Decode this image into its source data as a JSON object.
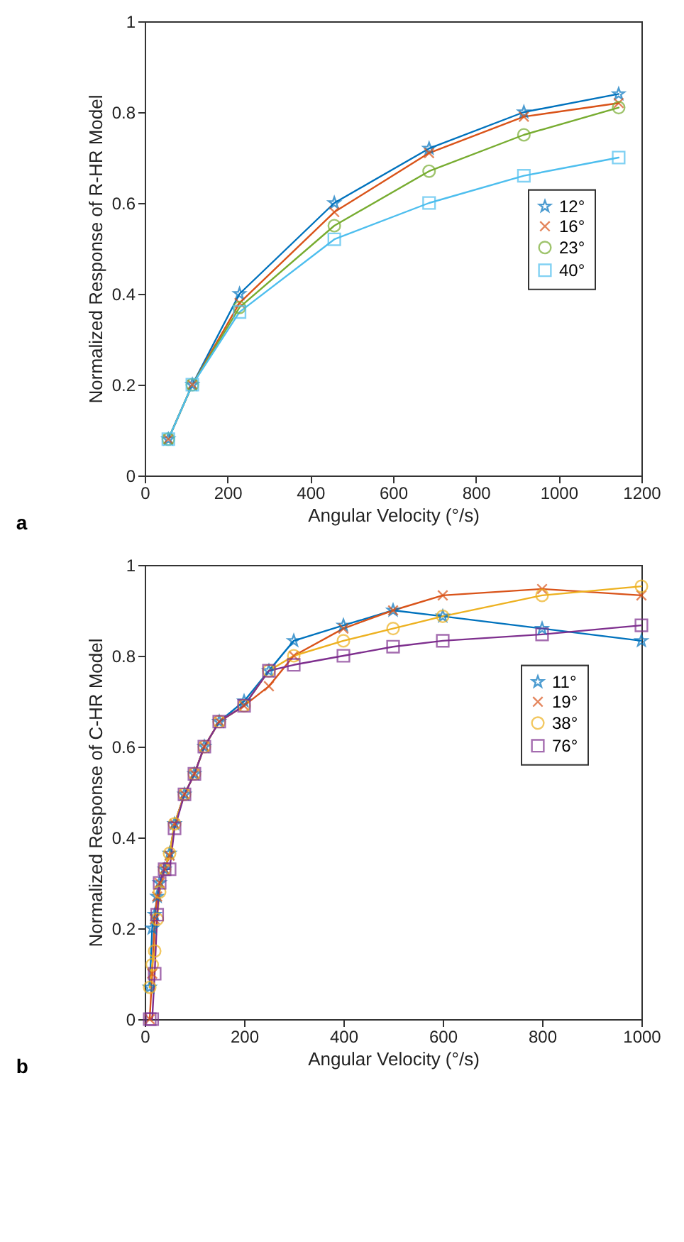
{
  "chart_data": [
    {
      "type": "line",
      "xlabel": "Angular Velocity (°/s)",
      "ylabel": "Normalized Response of R-HR Model",
      "annotations": [
        "a"
      ],
      "x": [
        57,
        115,
        229,
        458,
        687,
        916,
        1145
      ],
      "xlim": [
        0,
        1200
      ],
      "xticks": [
        0,
        200,
        400,
        600,
        800,
        1000,
        1200
      ],
      "ylim": [
        0,
        1
      ],
      "yticks": [
        0,
        0.2,
        0.4,
        0.6,
        0.8,
        1
      ],
      "grid": false,
      "legend": "right",
      "series": [
        {
          "name": "12°",
          "color": "#0072bd",
          "marker": "star",
          "values": [
            0.08,
            0.2,
            0.4,
            0.6,
            0.72,
            0.8,
            0.84
          ]
        },
        {
          "name": "16°",
          "color": "#d95319",
          "marker": "cross",
          "values": [
            0.08,
            0.2,
            0.38,
            0.58,
            0.71,
            0.79,
            0.82
          ]
        },
        {
          "name": "23°",
          "color": "#77ac30",
          "marker": "circle",
          "values": [
            0.08,
            0.2,
            0.37,
            0.55,
            0.67,
            0.75,
            0.81
          ]
        },
        {
          "name": "40°",
          "color": "#4dbeee",
          "marker": "square",
          "values": [
            0.08,
            0.2,
            0.36,
            0.52,
            0.6,
            0.66,
            0.7
          ]
        }
      ]
    },
    {
      "type": "line",
      "xlabel": "Angular Velocity (°/s)",
      "ylabel": "Normalized Response of C-HR Model",
      "annotations": [
        "b"
      ],
      "x": [
        10,
        15,
        20,
        25,
        30,
        40,
        50,
        60,
        80,
        100,
        120,
        150,
        200,
        250,
        300,
        400,
        500,
        600,
        800,
        1000
      ],
      "xlim": [
        0,
        1000
      ],
      "xticks": [
        0,
        200,
        400,
        600,
        800,
        1000
      ],
      "ylim": [
        0,
        1
      ],
      "yticks": [
        0,
        0.2,
        0.4,
        0.6,
        0.8,
        1
      ],
      "grid": false,
      "legend": "top right",
      "series": [
        {
          "name": "11°",
          "color": "#0072bd",
          "marker": "star",
          "values": [
            0.07,
            0.2,
            0.23,
            0.27,
            0.3,
            0.33,
            0.365,
            0.43,
            0.495,
            0.54,
            0.6,
            0.655,
            0.7,
            0.767,
            0.833,
            0.867,
            0.9,
            0.887,
            0.86,
            0.833
          ]
        },
        {
          "name": "19°",
          "color": "#d95319",
          "marker": "cross",
          "values": [
            0,
            0.1,
            0.22,
            0.27,
            0.3,
            0.33,
            0.36,
            0.43,
            0.495,
            0.54,
            0.6,
            0.655,
            0.69,
            0.733,
            0.8,
            0.86,
            0.9,
            0.933,
            0.947,
            0.933
          ]
        },
        {
          "name": "38°",
          "color": "#edb120",
          "marker": "circle",
          "values": [
            0.07,
            0.12,
            0.15,
            0.22,
            0.28,
            0.33,
            0.365,
            0.43,
            0.495,
            0.54,
            0.6,
            0.655,
            0.69,
            0.767,
            0.8,
            0.833,
            0.86,
            0.887,
            0.933,
            0.953
          ]
        },
        {
          "name": "76°",
          "color": "#7e2f8e",
          "marker": "square",
          "values": [
            0,
            0,
            0.1,
            0.23,
            0.3,
            0.33,
            0.33,
            0.42,
            0.495,
            0.54,
            0.6,
            0.655,
            0.69,
            0.767,
            0.78,
            0.8,
            0.82,
            0.833,
            0.847,
            0.867
          ]
        }
      ]
    }
  ]
}
